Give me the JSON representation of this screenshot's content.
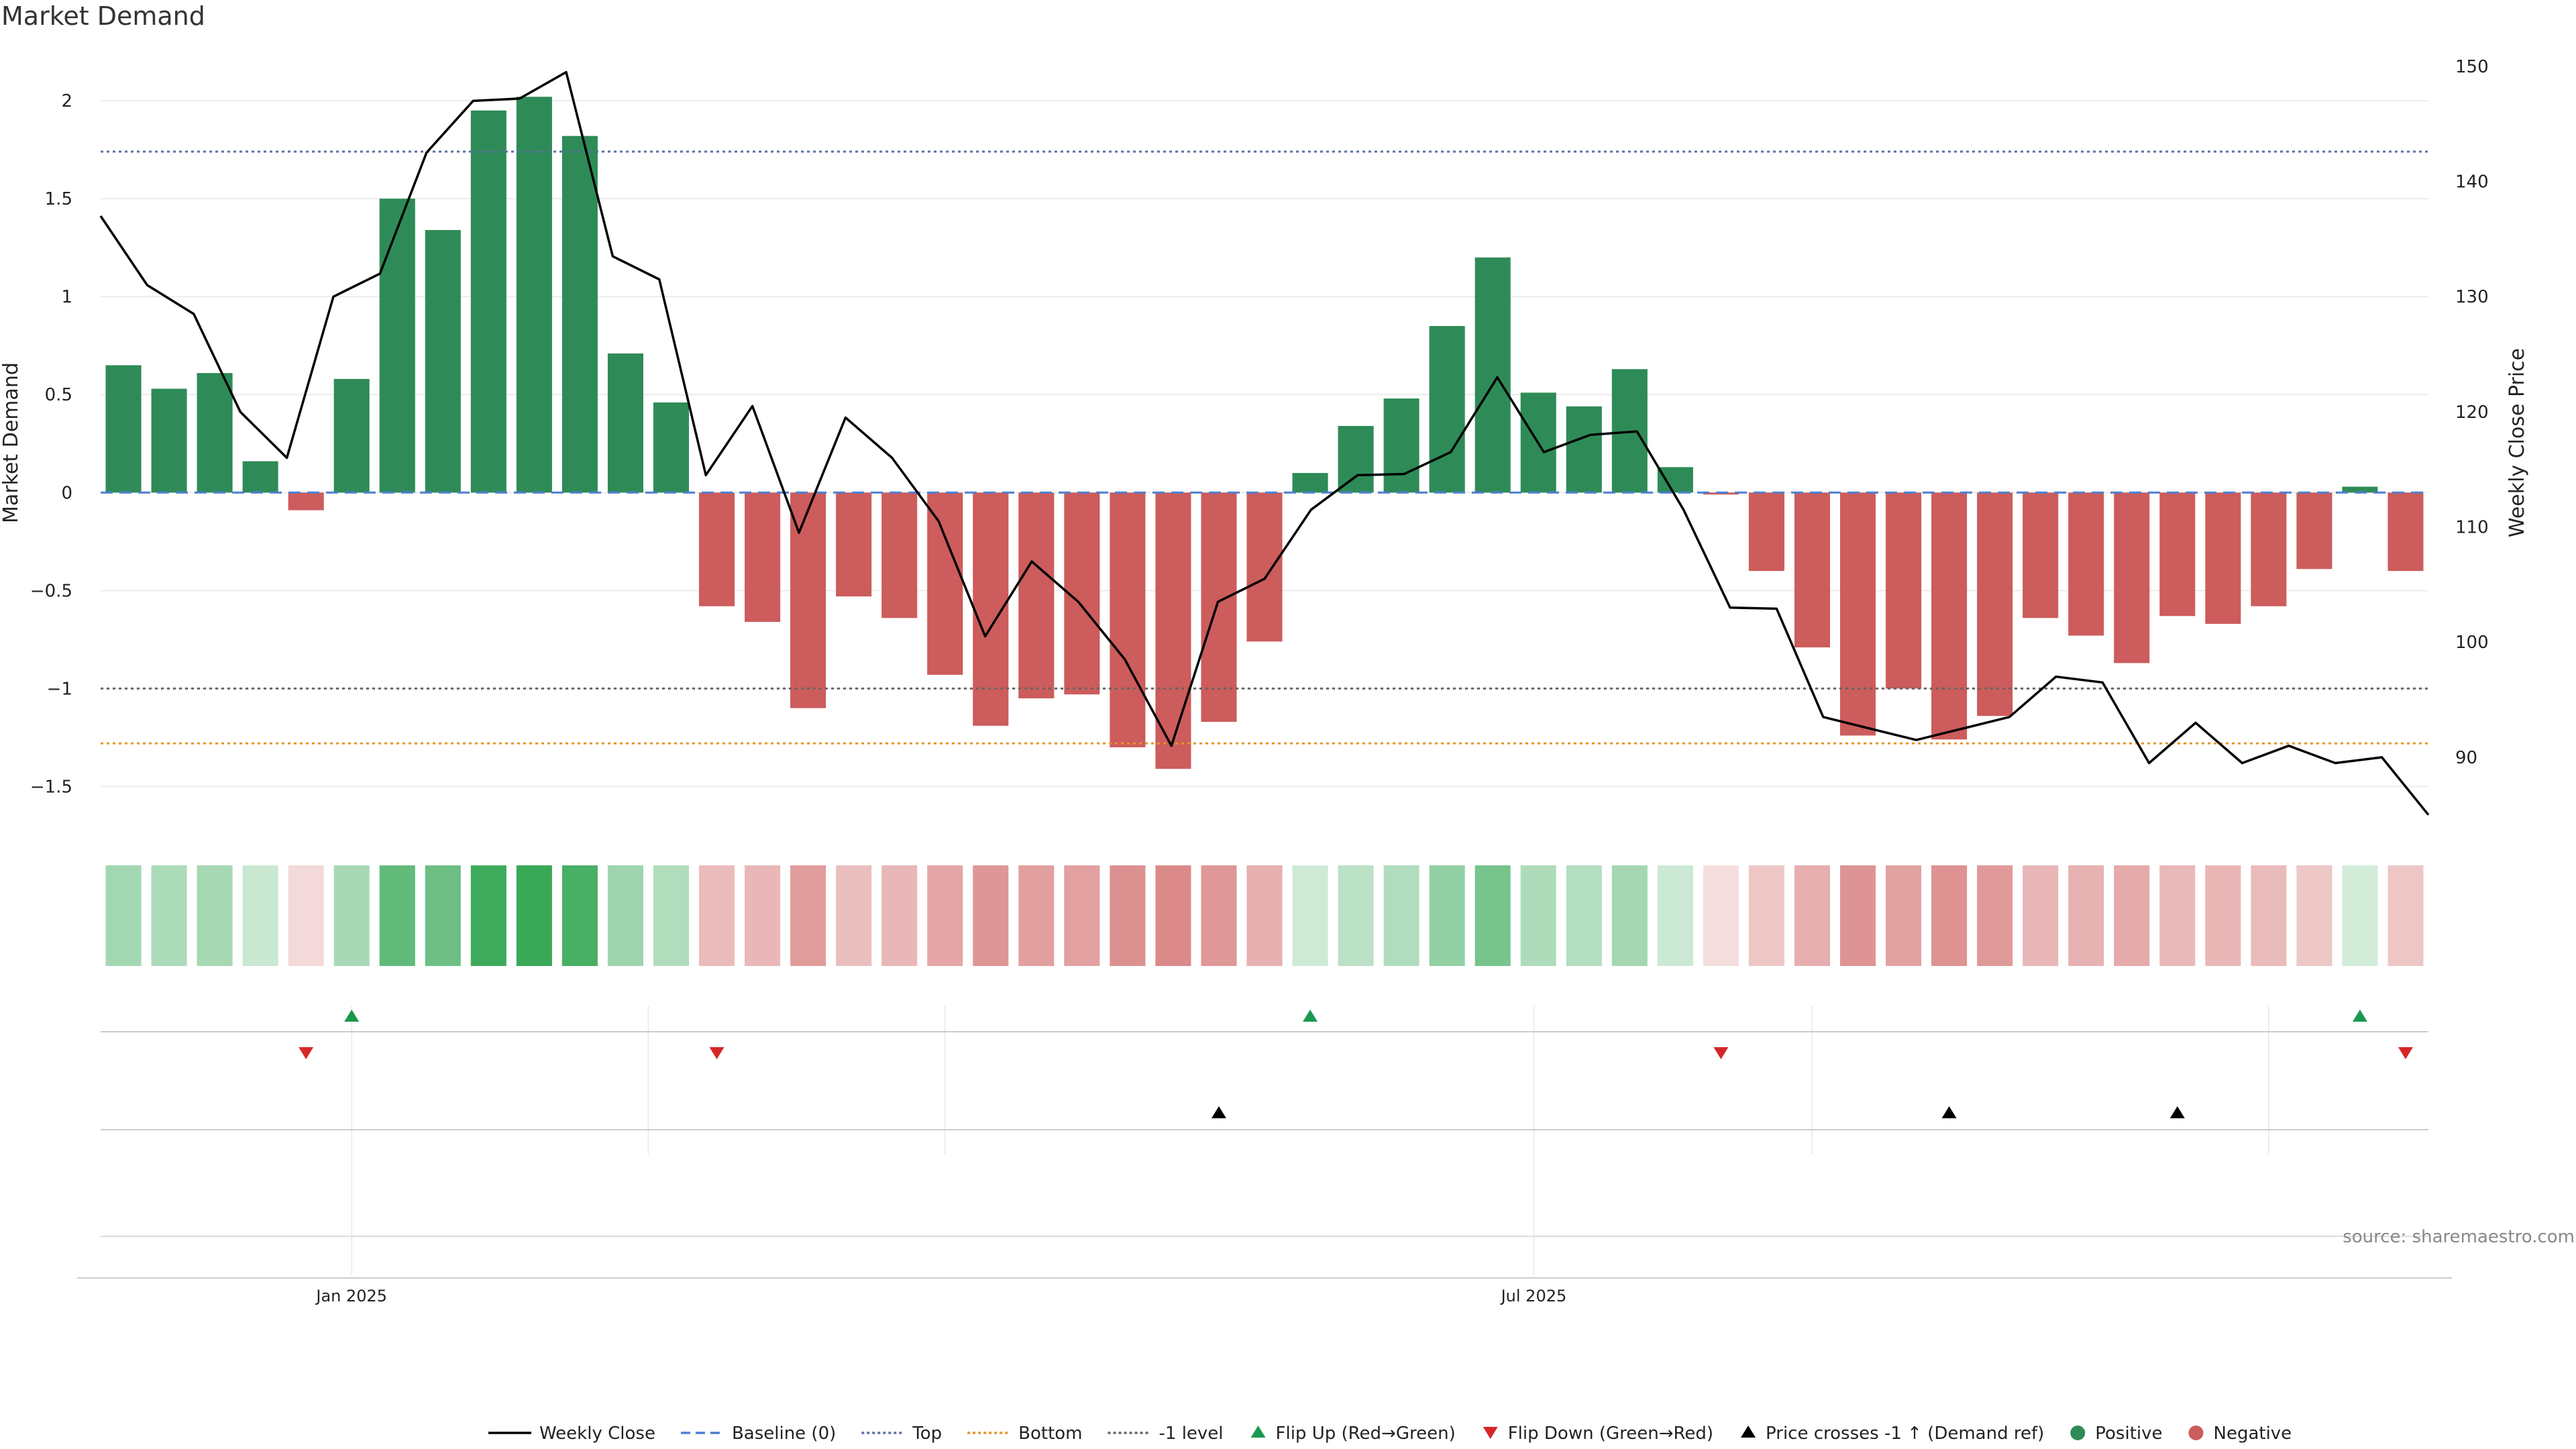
{
  "chart_data": {
    "type": "bar",
    "title": "Market Demand",
    "ylabel": "Market Demand",
    "y2label": "Weekly Close Price",
    "ylim": [
      -1.68,
      2.24
    ],
    "y2lim": [
      84.4,
      151.1
    ],
    "yticks": [
      2,
      1.5,
      1,
      0.5,
      0,
      -0.5,
      -1,
      -1.5
    ],
    "ytick_labels": [
      "2",
      "1.5",
      "1",
      "0.5",
      "0",
      "−0.5",
      "−1",
      "−1.5"
    ],
    "y2ticks": [
      150,
      140,
      130,
      120,
      110,
      100,
      90
    ],
    "y2tick_labels": [
      "150",
      "140",
      "130",
      "120",
      "110",
      "100",
      "90"
    ],
    "xticks": [
      {
        "label": "Jan 2025",
        "index": 5.5
      },
      {
        "label": "Jul 2025",
        "index": 31.4
      }
    ],
    "levels": {
      "baseline": 0,
      "top": 1.74,
      "bottom": -1.28,
      "minus_one": -1
    },
    "demand": [
      0.65,
      0.53,
      0.61,
      0.16,
      -0.09,
      0.58,
      1.5,
      1.34,
      1.95,
      2.02,
      1.82,
      0.71,
      0.46,
      -0.58,
      -0.66,
      -1.1,
      -0.53,
      -0.64,
      -0.93,
      -1.19,
      -1.05,
      -1.03,
      -1.3,
      -1.41,
      -1.17,
      -0.76,
      0.1,
      0.34,
      0.48,
      0.85,
      1.2,
      0.51,
      0.44,
      0.63,
      0.13,
      -0.01,
      -0.4,
      -0.79,
      -1.24,
      -1.0,
      -1.26,
      -1.14,
      -0.64,
      -0.73,
      -0.87,
      -0.63,
      -0.67,
      -0.58,
      -0.39,
      0.03,
      -0.4
    ],
    "close": [
      137,
      131,
      128.5,
      120,
      116,
      130,
      132,
      142.5,
      147,
      147.2,
      149.5,
      133.5,
      131.5,
      114.5,
      120.5,
      109.5,
      119.5,
      116,
      110.5,
      100.5,
      107,
      103.5,
      98.5,
      91,
      103.5,
      105.5,
      111.5,
      114.5,
      114.6,
      116.5,
      123,
      116.5,
      118,
      118.3,
      111.5,
      103,
      102.9,
      93.5,
      92.5,
      91.5,
      92.5,
      93.5,
      97,
      96.5,
      89.5,
      93,
      89.5,
      91,
      89.5,
      90,
      85
    ],
    "flip_up_index": [
      5,
      26,
      49
    ],
    "flip_down_index": [
      4,
      13,
      35,
      50
    ],
    "price_cross_index": [
      24,
      40,
      45
    ],
    "legend": [
      "Weekly Close",
      "Baseline (0)",
      "Top",
      "Bottom",
      "-1 level",
      "Flip Up (Red→Green)",
      "Flip Down (Green→Red)",
      "Price crosses -1 ↑ (Demand ref)",
      "Positive",
      "Negative"
    ],
    "source": "source: sharemaestro.com"
  },
  "colors": {
    "positive": "#2e8b57",
    "negative": "#cd5c5c",
    "flip_up": "#1a9850",
    "flip_down": "#d62728",
    "price": "#000000",
    "baseline": "#4c7ed1",
    "top": "#5b6fa5",
    "bottom": "#e69428",
    "minus_one": "#666666"
  }
}
